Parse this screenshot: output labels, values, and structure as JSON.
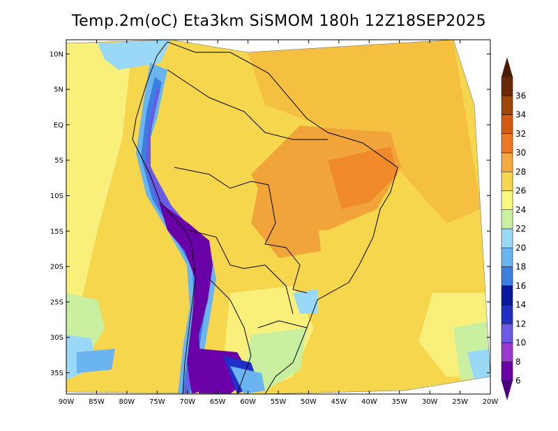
{
  "title": "Temp.2m(oC) Eta3km SiSMOM 180h 12Z18SEP2025",
  "map": {
    "variable": "2 m temperature",
    "lon_labels": [
      "90W",
      "85W",
      "80W",
      "75W",
      "70W",
      "65W",
      "60W",
      "55W",
      "50W",
      "45W",
      "40W",
      "35W",
      "30W",
      "25W",
      "20W"
    ],
    "lon_values": [
      -90,
      -85,
      -80,
      -75,
      -70,
      -65,
      -60,
      -55,
      -50,
      -45,
      -40,
      -35,
      -30,
      -25,
      -20
    ],
    "lat_labels": [
      "10N",
      "5N",
      "EQ",
      "5S",
      "10S",
      "15S",
      "20S",
      "25S",
      "30S",
      "35S"
    ],
    "lat_values": [
      10,
      5,
      0,
      -5,
      -10,
      -15,
      -20,
      -25,
      -30,
      -35
    ],
    "lon_range": [
      -90,
      -20
    ],
    "lat_range": [
      -38,
      12
    ]
  },
  "colorbar": {
    "labels": [
      "36",
      "34",
      "32",
      "30",
      "28",
      "26",
      "24",
      "22",
      "20",
      "18",
      "16",
      "14",
      "12",
      "10",
      "8",
      "6"
    ],
    "bins": [
      {
        "min": 6,
        "max": 8,
        "color": "#6a00a8"
      },
      {
        "min": 8,
        "max": 10,
        "color": "#9a3ad0"
      },
      {
        "min": 10,
        "max": 12,
        "color": "#6a5ae6"
      },
      {
        "min": 12,
        "max": 14,
        "color": "#1f2fc8"
      },
      {
        "min": 14,
        "max": 16,
        "color": "#0a1aa0"
      },
      {
        "min": 16,
        "max": 18,
        "color": "#3a7fe0"
      },
      {
        "min": 18,
        "max": 20,
        "color": "#6ab4f0"
      },
      {
        "min": 20,
        "max": 22,
        "color": "#9ad8f8"
      },
      {
        "min": 22,
        "max": 24,
        "color": "#c8f0a0"
      },
      {
        "min": 24,
        "max": 26,
        "color": "#f8f87a"
      },
      {
        "min": 26,
        "max": 28,
        "color": "#f5d64c"
      },
      {
        "min": 28,
        "max": 30,
        "color": "#f5a83c"
      },
      {
        "min": 30,
        "max": 32,
        "color": "#f07820"
      },
      {
        "min": 32,
        "max": 34,
        "color": "#d85a10"
      },
      {
        "min": 34,
        "max": 36,
        "color": "#a0460a"
      },
      {
        "min": 36,
        "max": 38,
        "color": "#6a2a08"
      }
    ],
    "under_color": "#4a007a",
    "over_color": "#4a1e06"
  }
}
